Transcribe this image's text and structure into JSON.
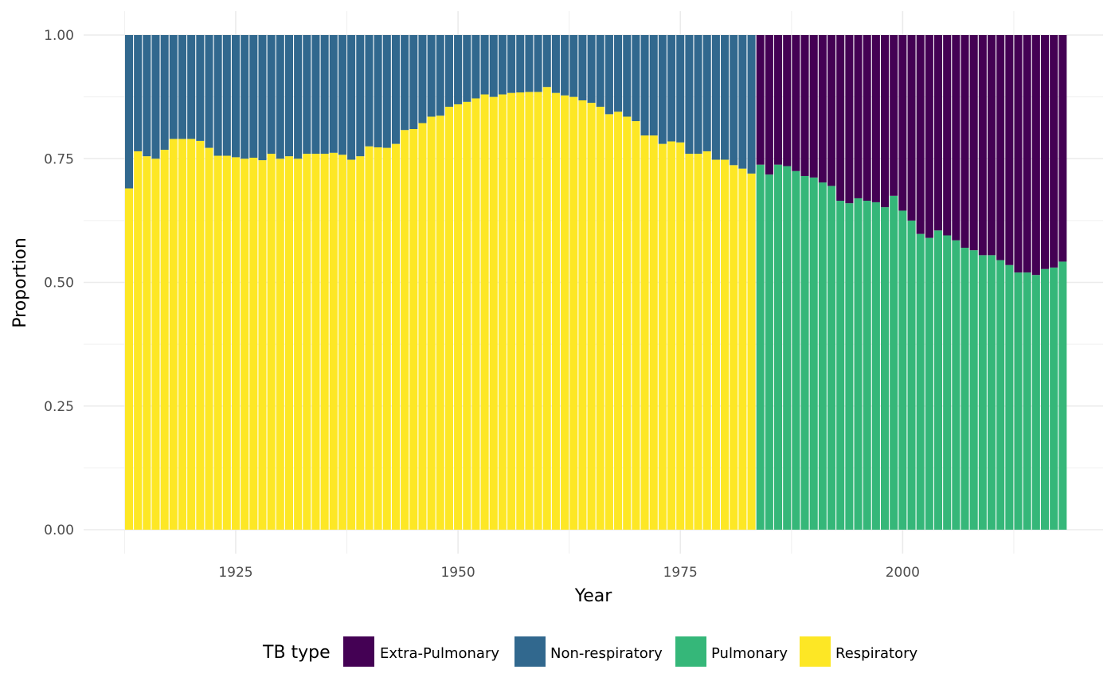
{
  "chart_data": {
    "type": "bar",
    "stacked": true,
    "position": "fill",
    "xlabel": "Year",
    "ylabel": "Proportion",
    "xlim": [
      1912.5,
      2017.5
    ],
    "ylim": [
      0,
      1
    ],
    "x_ticks": [
      1925,
      1950,
      1975,
      2000
    ],
    "x_tick_labels": [
      "1925",
      "1950",
      "1975",
      "2000"
    ],
    "y_ticks": [
      0,
      0.25,
      0.5,
      0.75,
      1
    ],
    "y_tick_labels": [
      "0.00",
      "0.25",
      "0.50",
      "0.75",
      "1.00"
    ],
    "grid": true,
    "legend": {
      "title": "TB type",
      "position": "bottom",
      "entries": [
        {
          "label": "Extra-Pulmonary",
          "color": "#440154"
        },
        {
          "label": "Non-respiratory",
          "color": "#31688E"
        },
        {
          "label": "Pulmonary",
          "color": "#35B779"
        },
        {
          "label": "Respiratory",
          "color": "#FDE725"
        }
      ]
    },
    "segments": [
      {
        "name": "Respiratory",
        "color": "#FDE725",
        "x_start": 1913,
        "values": [
          0.69,
          0.765,
          0.755,
          0.75,
          0.768,
          0.79,
          0.79,
          0.79,
          0.786,
          0.772,
          0.756,
          0.756,
          0.753,
          0.75,
          0.752,
          0.747,
          0.76,
          0.75,
          0.755,
          0.75,
          0.76,
          0.76,
          0.76,
          0.762,
          0.758,
          0.748,
          0.755,
          0.775,
          0.773,
          0.772,
          0.78,
          0.808,
          0.81,
          0.822,
          0.835,
          0.837,
          0.855,
          0.86,
          0.865,
          0.872,
          0.88,
          0.875,
          0.88,
          0.883,
          0.884,
          0.885,
          0.885,
          0.895,
          0.883,
          0.878,
          0.875,
          0.868,
          0.863,
          0.855,
          0.84,
          0.845,
          0.835,
          0.826,
          0.797,
          0.797,
          0.78,
          0.785,
          0.783,
          0.76,
          0.76,
          0.765,
          0.748,
          0.748,
          0.737,
          0.73,
          0.72
        ]
      },
      {
        "name": "Non-respiratory",
        "color": "#31688E",
        "x_start": 1913,
        "values": [
          0.31,
          0.235,
          0.245,
          0.25,
          0.232,
          0.21,
          0.21,
          0.21,
          0.214,
          0.228,
          0.244,
          0.244,
          0.247,
          0.25,
          0.248,
          0.253,
          0.24,
          0.25,
          0.245,
          0.25,
          0.24,
          0.24,
          0.24,
          0.238,
          0.242,
          0.252,
          0.245,
          0.225,
          0.227,
          0.228,
          0.22,
          0.192,
          0.19,
          0.178,
          0.165,
          0.163,
          0.145,
          0.14,
          0.135,
          0.128,
          0.12,
          0.125,
          0.12,
          0.117,
          0.116,
          0.115,
          0.115,
          0.105,
          0.117,
          0.122,
          0.125,
          0.132,
          0.137,
          0.145,
          0.16,
          0.155,
          0.165,
          0.174,
          0.203,
          0.203,
          0.22,
          0.215,
          0.217,
          0.24,
          0.24,
          0.235,
          0.252,
          0.252,
          0.263,
          0.27,
          0.28
        ]
      },
      {
        "name": "Pulmonary",
        "color": "#35B779",
        "x_start": 1984,
        "values": [
          0.738,
          0.718,
          0.738,
          0.735,
          0.725,
          0.715,
          0.712,
          0.702,
          0.695,
          0.665,
          0.66,
          0.67,
          0.665,
          0.662,
          0.652,
          0.675,
          0.645,
          0.625,
          0.598,
          0.59,
          0.605,
          0.595,
          0.585,
          0.57,
          0.565,
          0.555,
          0.555,
          0.545,
          0.535,
          0.52,
          0.52,
          0.515,
          0.527,
          0.53,
          0.542
        ]
      },
      {
        "name": "Extra-Pulmonary",
        "color": "#440154",
        "x_start": 1984,
        "values": [
          0.262,
          0.282,
          0.262,
          0.265,
          0.275,
          0.285,
          0.288,
          0.298,
          0.305,
          0.335,
          0.34,
          0.33,
          0.335,
          0.338,
          0.348,
          0.325,
          0.355,
          0.375,
          0.402,
          0.41,
          0.395,
          0.405,
          0.415,
          0.43,
          0.435,
          0.445,
          0.445,
          0.455,
          0.465,
          0.48,
          0.48,
          0.485,
          0.473,
          0.47,
          0.458
        ]
      }
    ]
  }
}
